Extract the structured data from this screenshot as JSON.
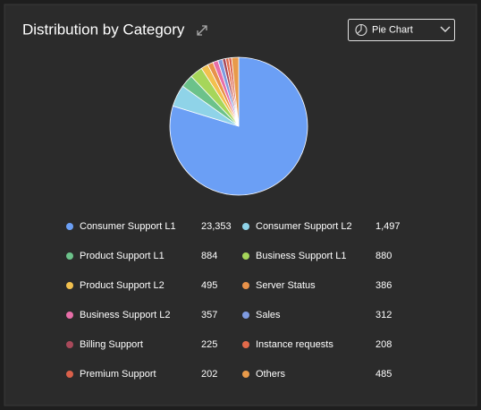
{
  "chart_data": {
    "type": "pie",
    "title": "Distribution by Category",
    "categories": [
      "Consumer Support L1",
      "Consumer Support L2",
      "Product Support L1",
      "Business Support L1",
      "Product Support L2",
      "Server Status",
      "Business Support L2",
      "Sales",
      "Billing Support",
      "Instance requests",
      "Premium Support",
      "Others"
    ],
    "values": [
      23353,
      1497,
      884,
      880,
      495,
      386,
      357,
      312,
      225,
      208,
      202,
      485
    ],
    "value_labels": [
      "23,353",
      "1,497",
      "884",
      "880",
      "495",
      "386",
      "357",
      "312",
      "225",
      "208",
      "202",
      "485"
    ],
    "colors": [
      "#6b9ff5",
      "#8fd3e8",
      "#6cc28a",
      "#a6d65a",
      "#f2c04e",
      "#e8924a",
      "#e76ea8",
      "#7f9be0",
      "#a8495a",
      "#e26a4a",
      "#d9604a",
      "#e89a4a"
    ]
  },
  "controls": {
    "chart_type_select": "Pie Chart"
  }
}
